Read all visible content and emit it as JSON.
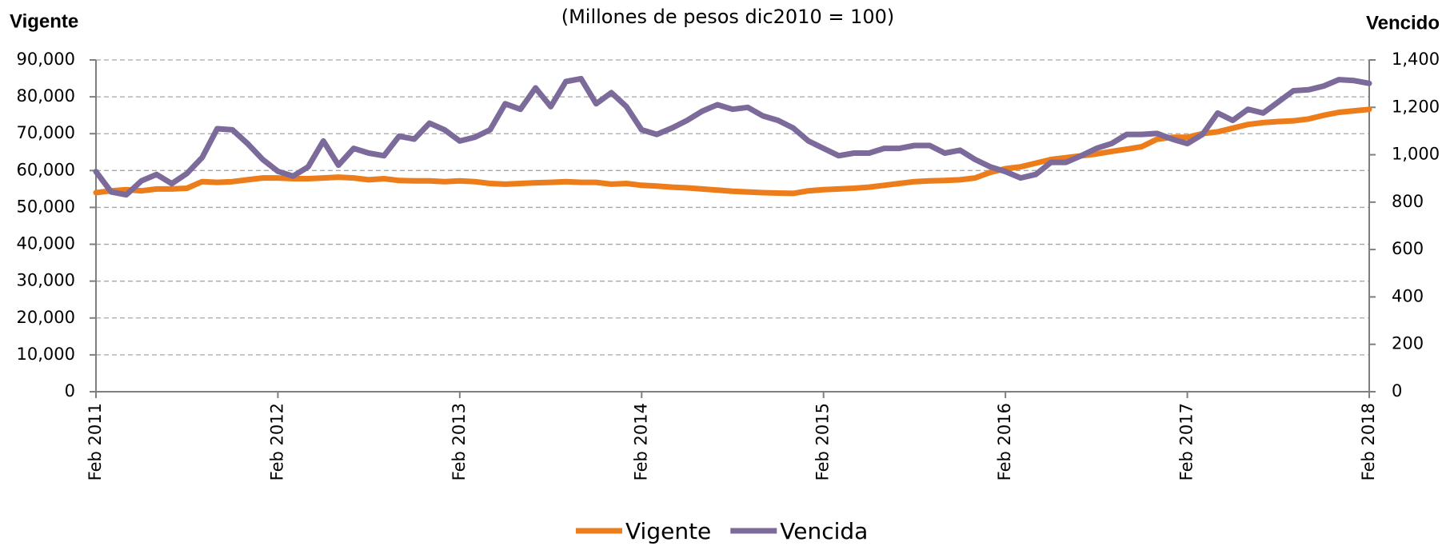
{
  "chart_data": {
    "type": "line",
    "subtitle": "(Millones de pesos dic2010 = 100)",
    "y_label": "Vigente",
    "y2_label": "Vencido",
    "categories": [
      "Feb 2011",
      null,
      null,
      null,
      null,
      null,
      null,
      null,
      null,
      null,
      null,
      null,
      "Feb 2012",
      null,
      null,
      null,
      null,
      null,
      null,
      null,
      null,
      null,
      null,
      null,
      "Feb 2013",
      null,
      null,
      null,
      null,
      null,
      null,
      null,
      null,
      null,
      null,
      null,
      "Feb 2014",
      null,
      null,
      null,
      null,
      null,
      null,
      null,
      null,
      null,
      null,
      null,
      "Feb 2015",
      null,
      null,
      null,
      null,
      null,
      null,
      null,
      null,
      null,
      null,
      null,
      "Feb 2016",
      null,
      null,
      null,
      null,
      null,
      null,
      null,
      null,
      null,
      null,
      null,
      "Feb 2017",
      null,
      null,
      null,
      null,
      null,
      null,
      null,
      null,
      null,
      null,
      null,
      "Feb 2018"
    ],
    "series": [
      {
        "name": "Vigente",
        "color": "#ED7D1A",
        "axis": "y",
        "values": [
          54000,
          54500,
          54800,
          54500,
          55000,
          55000,
          55200,
          57000,
          56800,
          57000,
          57500,
          58000,
          58000,
          57800,
          57800,
          58000,
          58200,
          58000,
          57500,
          57800,
          57300,
          57200,
          57200,
          57000,
          57200,
          57000,
          56500,
          56300,
          56500,
          56700,
          56800,
          57000,
          56800,
          56800,
          56300,
          56500,
          56000,
          55800,
          55500,
          55300,
          55000,
          54700,
          54400,
          54200,
          54000,
          53900,
          53800,
          54500,
          54800,
          55000,
          55200,
          55500,
          56000,
          56500,
          57000,
          57200,
          57300,
          57500,
          58000,
          59500,
          60500,
          61000,
          62000,
          63000,
          63500,
          64000,
          64500,
          65200,
          65800,
          66500,
          68500,
          69000,
          69000,
          70000,
          70500,
          71500,
          72500,
          73000,
          73300,
          73500,
          74000,
          75000,
          75800,
          76200,
          76600
        ]
      },
      {
        "name": "Vencida",
        "color": "#7B6A9A",
        "axis": "y2",
        "values": [
          929,
          843,
          831,
          890,
          917,
          878,
          921,
          988,
          1110,
          1105,
          1047,
          980,
          930,
          910,
          949,
          1058,
          956,
          1027,
          1007,
          996,
          1078,
          1066,
          1133,
          1105,
          1058,
          1074,
          1105,
          1215,
          1192,
          1282,
          1203,
          1309,
          1321,
          1215,
          1262,
          1203,
          1105,
          1086,
          1113,
          1145,
          1184,
          1211,
          1192,
          1200,
          1164,
          1145,
          1113,
          1058,
          1027,
          996,
          1007,
          1007,
          1027,
          1027,
          1039,
          1039,
          1007,
          1019,
          980,
          949,
          929,
          902,
          917,
          968,
          968,
          996,
          1027,
          1047,
          1086,
          1086,
          1090,
          1066,
          1047,
          1086,
          1176,
          1145,
          1192,
          1176,
          1223,
          1270,
          1274,
          1290,
          1317,
          1313,
          1301
        ]
      }
    ],
    "ylim": [
      0,
      90000
    ],
    "yticks": [
      0,
      {
        "value": 10000,
        "label": "10,000"
      },
      {
        "value": 20000,
        "label": "20,000"
      },
      {
        "value": 30000,
        "label": "30,000"
      },
      {
        "value": 40000,
        "label": "40,000"
      },
      {
        "value": 50000,
        "label": "50,000"
      },
      {
        "value": 60000,
        "label": "60,000"
      },
      {
        "value": 70000,
        "label": "70,000"
      },
      {
        "value": 80000,
        "label": "80,000"
      },
      {
        "value": 90000,
        "label": "90,000"
      }
    ],
    "y2lim": [
      0,
      1400
    ],
    "y2ticks": [
      0,
      200,
      400,
      600,
      800,
      {
        "value": 1000,
        "label": "1,000"
      },
      {
        "value": 1200,
        "label": "1,200"
      },
      {
        "value": 1400,
        "label": "1,400"
      }
    ],
    "grid": true,
    "legend": "bottom"
  }
}
